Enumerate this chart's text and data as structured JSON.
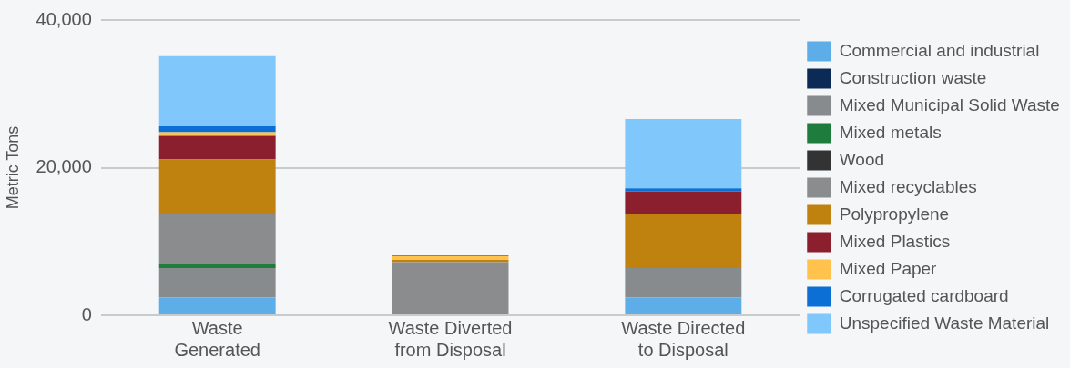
{
  "chart_data": {
    "type": "bar",
    "stacked": true,
    "ylabel": "Metric Tons",
    "categories": [
      "Waste Generated",
      "Waste Diverted from Disposal",
      "Waste Directed to Disposal"
    ],
    "series": [
      {
        "name": "Commercial and industrial",
        "color": "#5dade8",
        "values": [
          2400,
          0,
          2400
        ]
      },
      {
        "name": "Construction waste",
        "color": "#0b2a55",
        "values": [
          0,
          0,
          0
        ]
      },
      {
        "name": "Mixed Municipal Solid Waste",
        "color": "#888b8d",
        "values": [
          4000,
          0,
          4000
        ]
      },
      {
        "name": "Mixed metals",
        "color": "#1e7d3c",
        "values": [
          500,
          200,
          0
        ]
      },
      {
        "name": "Wood",
        "color": "#333333",
        "values": [
          0,
          0,
          0
        ]
      },
      {
        "name": "Mixed recyclables",
        "color": "#8a8c8e",
        "values": [
          6800,
          7000,
          0
        ]
      },
      {
        "name": "Polypropylene",
        "color": "#c0820f",
        "values": [
          7400,
          300,
          7400
        ]
      },
      {
        "name": "Mixed Plastics",
        "color": "#8b1f2e",
        "values": [
          3200,
          0,
          3000
        ]
      },
      {
        "name": "Mixed Paper",
        "color": "#ffc34d",
        "values": [
          500,
          500,
          0
        ]
      },
      {
        "name": "Corrugated cardboard",
        "color": "#0b6fd6",
        "values": [
          800,
          100,
          400
        ]
      },
      {
        "name": "Unspecified Waste Material",
        "color": "#80c8fb",
        "values": [
          9500,
          0,
          9400
        ]
      }
    ],
    "ylim": [
      0,
      40000
    ],
    "yticks": [
      {
        "value": 0,
        "label": "0"
      },
      {
        "value": 20000,
        "label": "20,000"
      },
      {
        "value": 40000,
        "label": "40,000"
      }
    ],
    "grid": "y",
    "legend": "right"
  }
}
